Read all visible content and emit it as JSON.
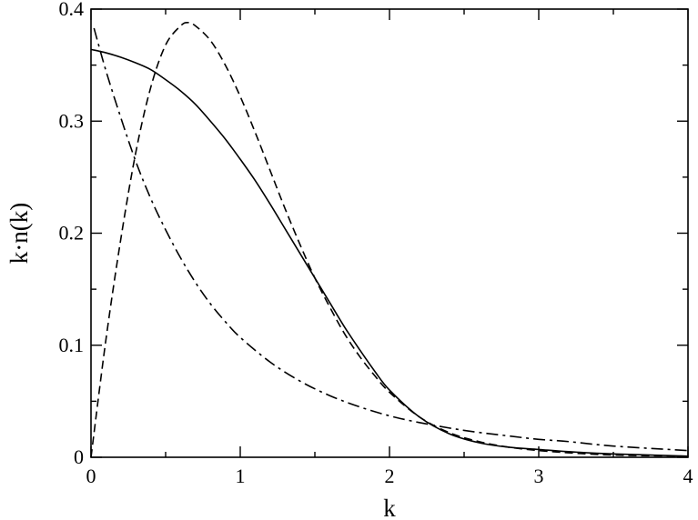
{
  "chart_data": {
    "type": "line",
    "title": "",
    "xlabel": "k",
    "ylabel": "k·n(k)",
    "xlim": [
      0,
      4
    ],
    "ylim": [
      0,
      0.4
    ],
    "x_ticks": [
      {
        "value": 0,
        "label": "0"
      },
      {
        "value": 1,
        "label": "1"
      },
      {
        "value": 2,
        "label": "2"
      },
      {
        "value": 3,
        "label": "3"
      },
      {
        "value": 4,
        "label": "4"
      }
    ],
    "y_ticks": [
      {
        "value": 0,
        "label": "0"
      },
      {
        "value": 0.1,
        "label": "0.1"
      },
      {
        "value": 0.2,
        "label": "0.2"
      },
      {
        "value": 0.3,
        "label": "0.3"
      },
      {
        "value": 0.4,
        "label": "0.4"
      }
    ],
    "minor_ticks": true,
    "grid": false,
    "legend": "none",
    "series": [
      {
        "style": "solid",
        "color": "#000000",
        "x": [
          0,
          0.1,
          0.2,
          0.3,
          0.4,
          0.5,
          0.6,
          0.7,
          0.8,
          0.9,
          1.0,
          1.1,
          1.2,
          1.3,
          1.4,
          1.5,
          1.6,
          1.7,
          1.8,
          1.9,
          2.0,
          2.2,
          2.4,
          2.6,
          2.8,
          3.0,
          3.2,
          3.5,
          4.0
        ],
        "y": [
          0.364,
          0.361,
          0.357,
          0.352,
          0.346,
          0.337,
          0.327,
          0.315,
          0.3,
          0.284,
          0.266,
          0.247,
          0.226,
          0.204,
          0.182,
          0.16,
          0.138,
          0.116,
          0.096,
          0.077,
          0.06,
          0.036,
          0.021,
          0.013,
          0.009,
          0.007,
          0.005,
          0.003,
          0.001
        ]
      },
      {
        "style": "dashed",
        "color": "#000000",
        "x": [
          0,
          0.1,
          0.2,
          0.3,
          0.4,
          0.5,
          0.6,
          0.65,
          0.7,
          0.8,
          0.9,
          1.0,
          1.1,
          1.2,
          1.3,
          1.4,
          1.5,
          1.6,
          1.7,
          1.8,
          1.9,
          2.0,
          2.2,
          2.4,
          2.6,
          2.8,
          3.0,
          3.2,
          3.5,
          4.0
        ],
        "y": [
          0.0,
          0.105,
          0.195,
          0.272,
          0.33,
          0.368,
          0.385,
          0.388,
          0.385,
          0.372,
          0.35,
          0.322,
          0.29,
          0.256,
          0.222,
          0.19,
          0.16,
          0.134,
          0.11,
          0.09,
          0.073,
          0.058,
          0.036,
          0.022,
          0.014,
          0.009,
          0.006,
          0.004,
          0.002,
          0.001
        ]
      },
      {
        "style": "dash-dot",
        "color": "#000000",
        "x": [
          0.02,
          0.1,
          0.2,
          0.3,
          0.4,
          0.5,
          0.6,
          0.7,
          0.8,
          0.9,
          1.0,
          1.2,
          1.4,
          1.6,
          1.8,
          2.0,
          2.2,
          2.5,
          2.8,
          3.0,
          3.2,
          3.5,
          4.0
        ],
        "y": [
          0.383,
          0.345,
          0.303,
          0.264,
          0.231,
          0.203,
          0.178,
          0.156,
          0.137,
          0.121,
          0.107,
          0.085,
          0.068,
          0.055,
          0.045,
          0.037,
          0.031,
          0.024,
          0.019,
          0.016,
          0.014,
          0.01,
          0.006
        ]
      }
    ]
  }
}
